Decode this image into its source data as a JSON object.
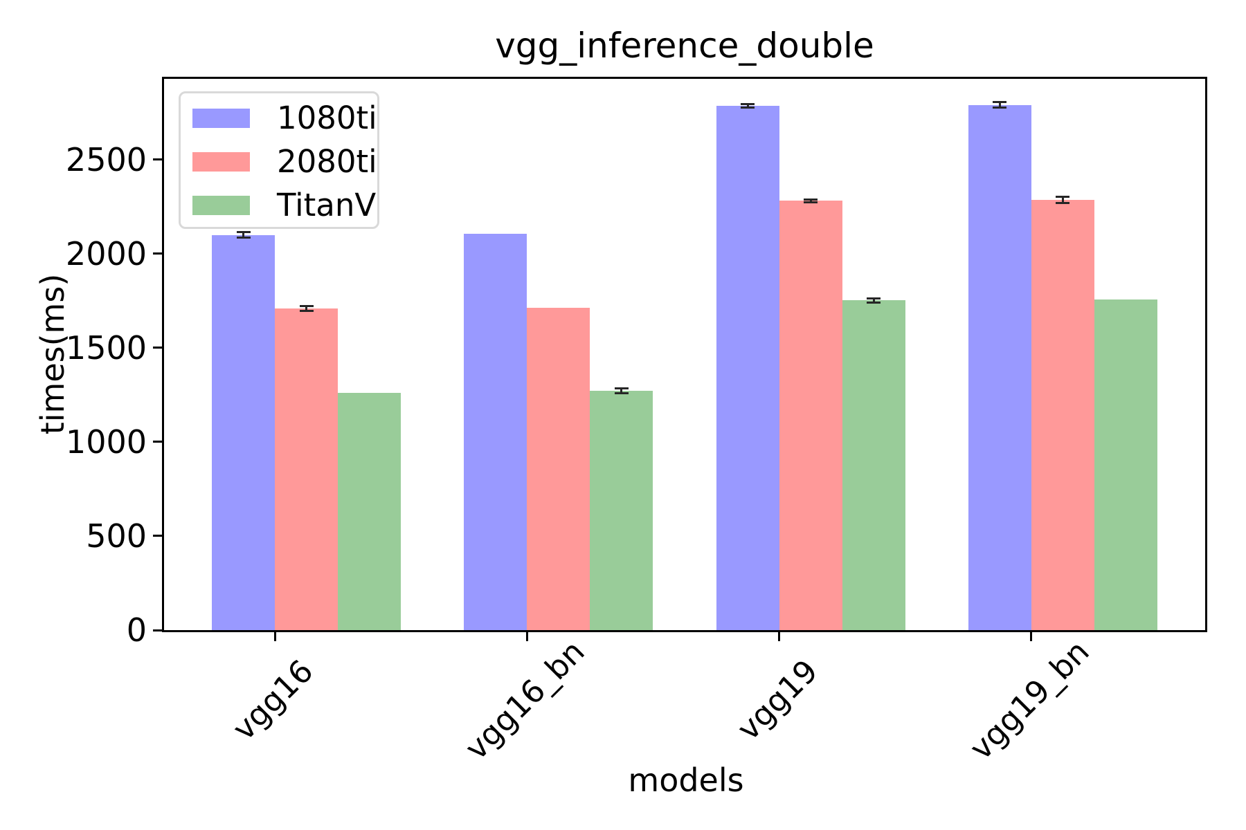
{
  "figure": {
    "background": "#ffffff"
  },
  "chart_data": {
    "type": "bar",
    "title": "vgg_inference_double",
    "xlabel": "models",
    "ylabel": "times(ms)",
    "categories": [
      "vgg16",
      "vgg16_bn",
      "vgg19",
      "vgg19_bn"
    ],
    "series": [
      {
        "name": "1080ti",
        "color": "#9999ff",
        "values": [
          2100,
          2108,
          2786,
          2792
        ],
        "errors": [
          15,
          0,
          10,
          14
        ]
      },
      {
        "name": "2080ti",
        "color": "#ff9999",
        "values": [
          1710,
          1713,
          2282,
          2287
        ],
        "errors": [
          12,
          0,
          8,
          16
        ]
      },
      {
        "name": "TitanV",
        "color": "#99cc99",
        "values": [
          1262,
          1272,
          1752,
          1757
        ],
        "errors": [
          0,
          12,
          10,
          0
        ]
      }
    ],
    "yticks": [
      0,
      500,
      1000,
      1500,
      2000,
      2500
    ],
    "ylim": [
      0,
      2930
    ],
    "xlim": [
      -0.44,
      3.69
    ],
    "bar_width": 0.25,
    "bar_order_offsets": [
      -0.25,
      0,
      0.25
    ],
    "grid": false,
    "legend_position": "upper-left",
    "error_color": "#262626",
    "axis_color": "#000000",
    "legend_border_color": "#d9d9d9"
  }
}
